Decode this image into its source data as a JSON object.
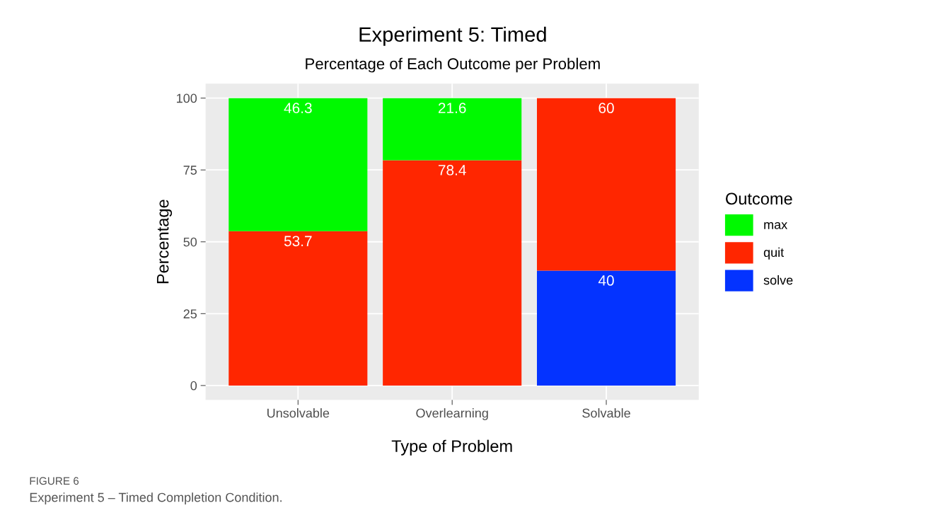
{
  "chart_data": {
    "type": "bar",
    "title": "Experiment 5: Timed",
    "subtitle": "Percentage of Each Outcome per Problem",
    "xlabel": "Type of Problem",
    "ylabel": "Percentage",
    "legend_title": "Outcome",
    "categories": [
      "Unsolvable",
      "Overlearning",
      "Solvable"
    ],
    "stacked": true,
    "series": [
      {
        "name": "solve",
        "color": "#0433ff",
        "values": [
          null,
          null,
          40
        ],
        "value_labels": [
          null,
          null,
          "40"
        ]
      },
      {
        "name": "quit",
        "color": "#ff2600",
        "values": [
          53.7,
          78.4,
          60
        ],
        "value_labels": [
          "53.7",
          "78.4",
          "60"
        ]
      },
      {
        "name": "max",
        "color": "#00f900",
        "values": [
          46.3,
          21.6,
          null
        ],
        "value_labels": [
          "46.3",
          "21.6",
          null
        ]
      }
    ],
    "ylim": [
      -5,
      105
    ],
    "yticks": [
      0,
      25,
      50,
      75,
      100
    ],
    "grid": true,
    "legend": "right",
    "annotations": [
      "FIGURE 6",
      "Experiment 5 – Timed Completion Condition."
    ]
  }
}
